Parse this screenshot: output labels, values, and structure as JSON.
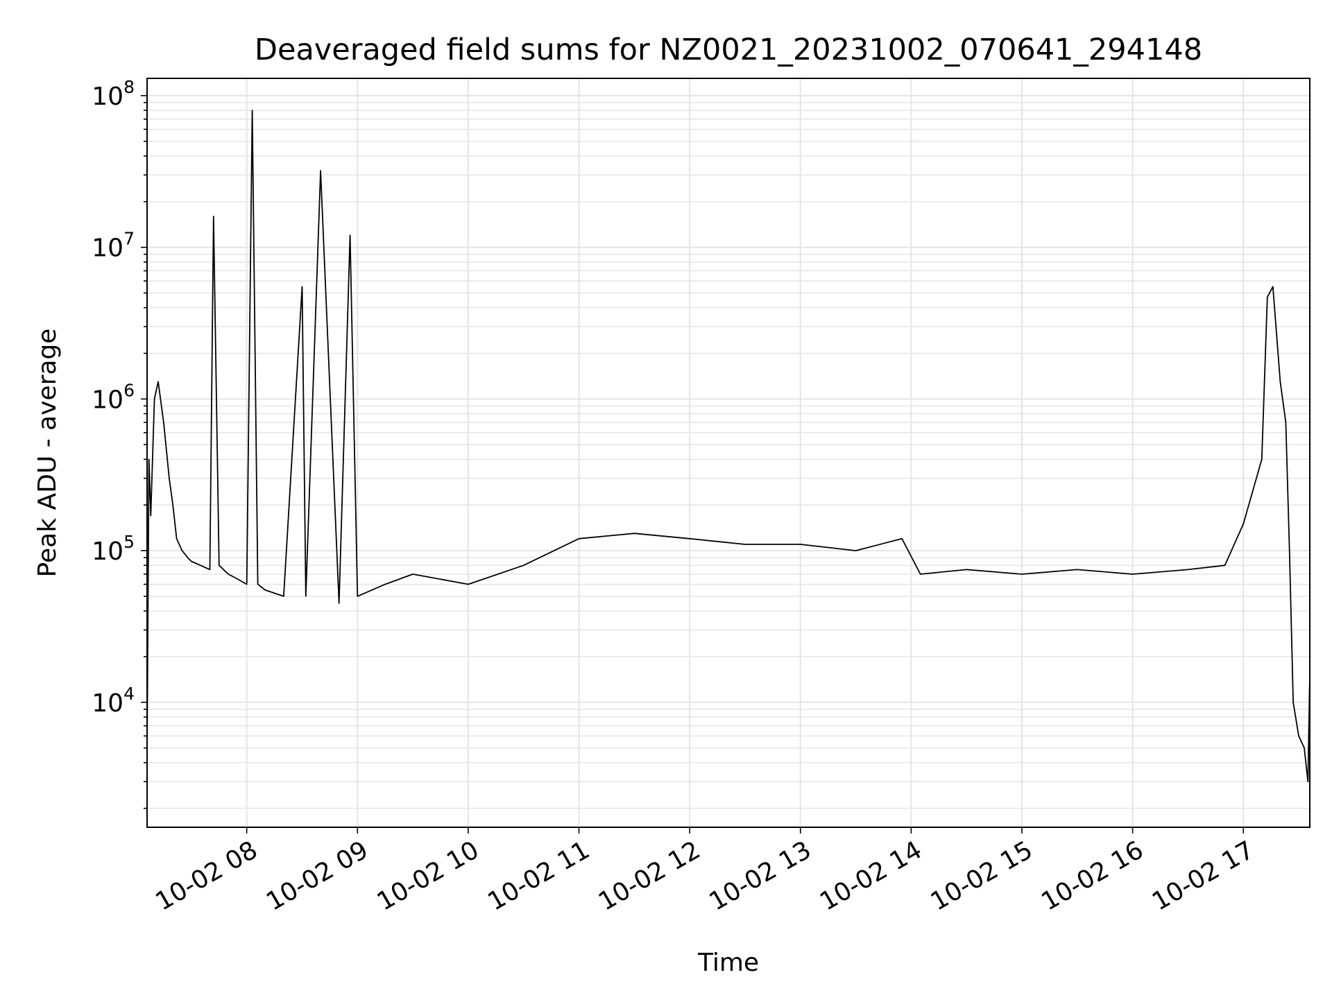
{
  "chart_data": {
    "type": "line",
    "title": "Deaveraged field sums for NZ0021_20231002_070641_294148",
    "xlabel": "Time",
    "ylabel": "Peak ADU - average",
    "yscale": "log",
    "ylim": [
      1500,
      130000000
    ],
    "xlim": [
      "2023-10-02 07:06",
      "2023-10-02 17:36"
    ],
    "grid": true,
    "legend": "none",
    "line_color": "#000000",
    "grid_color": "#e5e5e5",
    "x_ticks": [
      "10-02 08",
      "10-02 09",
      "10-02 10",
      "10-02 11",
      "10-02 12",
      "10-02 13",
      "10-02 14",
      "10-02 15",
      "10-02 16",
      "10-02 17"
    ],
    "y_ticks": [
      {
        "base": "10",
        "exp": "4",
        "value": 10000
      },
      {
        "base": "10",
        "exp": "5",
        "value": 100000
      },
      {
        "base": "10",
        "exp": "6",
        "value": 1000000
      },
      {
        "base": "10",
        "exp": "7",
        "value": 10000000
      },
      {
        "base": "10",
        "exp": "8",
        "value": 100000000
      }
    ],
    "series": [
      {
        "x": [
          "2023-10-02 07:06",
          "2023-10-02 07:07",
          "2023-10-02 07:08",
          "2023-10-02 07:10",
          "2023-10-02 07:12",
          "2023-10-02 07:15",
          "2023-10-02 07:18",
          "2023-10-02 07:20",
          "2023-10-02 07:22",
          "2023-10-02 07:25",
          "2023-10-02 07:28",
          "2023-10-02 07:30",
          "2023-10-02 07:35",
          "2023-10-02 07:40",
          "2023-10-02 07:42",
          "2023-10-02 07:45",
          "2023-10-02 07:50",
          "2023-10-02 07:55",
          "2023-10-02 08:00",
          "2023-10-02 08:03",
          "2023-10-02 08:06",
          "2023-10-02 08:10",
          "2023-10-02 08:20",
          "2023-10-02 08:30",
          "2023-10-02 08:32",
          "2023-10-02 08:40",
          "2023-10-02 08:50",
          "2023-10-02 08:56",
          "2023-10-02 09:00",
          "2023-10-02 09:15",
          "2023-10-02 09:30",
          "2023-10-02 10:00",
          "2023-10-02 10:30",
          "2023-10-02 11:00",
          "2023-10-02 11:30",
          "2023-10-02 12:00",
          "2023-10-02 12:30",
          "2023-10-02 13:00",
          "2023-10-02 13:30",
          "2023-10-02 13:55",
          "2023-10-02 14:05",
          "2023-10-02 14:30",
          "2023-10-02 15:00",
          "2023-10-02 15:30",
          "2023-10-02 16:00",
          "2023-10-02 16:30",
          "2023-10-02 16:50",
          "2023-10-02 17:00",
          "2023-10-02 17:10",
          "2023-10-02 17:13",
          "2023-10-02 17:16",
          "2023-10-02 17:20",
          "2023-10-02 17:23",
          "2023-10-02 17:25",
          "2023-10-02 17:27",
          "2023-10-02 17:30",
          "2023-10-02 17:33",
          "2023-10-02 17:35",
          "2023-10-02 17:36"
        ],
        "y": [
          5000,
          400000,
          170000,
          1000000,
          1300000,
          700000,
          300000,
          200000,
          120000,
          100000,
          90000,
          85000,
          80000,
          75000,
          16000000,
          80000,
          70000,
          65000,
          60000,
          80000000,
          60000,
          55000,
          50000,
          5500000,
          50000,
          32000000,
          45000,
          12000000,
          50000,
          60000,
          70000,
          60000,
          80000,
          120000,
          130000,
          120000,
          110000,
          110000,
          100000,
          120000,
          70000,
          75000,
          70000,
          75000,
          70000,
          75000,
          80000,
          150000,
          400000,
          4700000,
          5500000,
          1300000,
          700000,
          100000,
          10000,
          6000,
          5000,
          3000,
          15000
        ]
      }
    ]
  }
}
